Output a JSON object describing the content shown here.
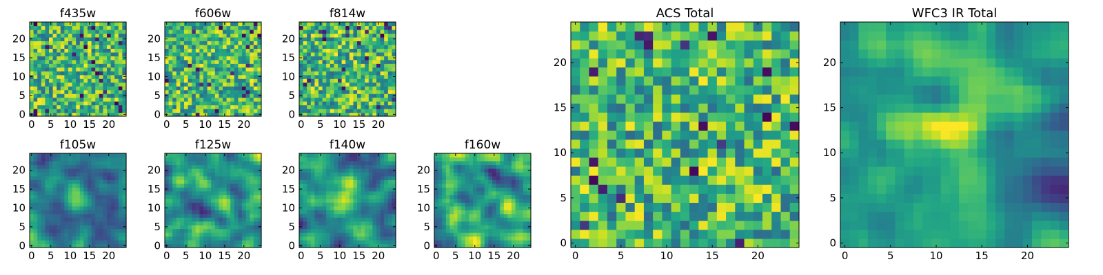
{
  "chart_data": [
    {
      "type": "heatmap",
      "title": "f435w",
      "grid_size": [
        25,
        25
      ],
      "xticks": [
        0,
        5,
        10,
        15,
        20
      ],
      "yticks": [
        0,
        5,
        10,
        15,
        20
      ],
      "xlim": [
        -0.5,
        24.5
      ],
      "ylim": [
        -0.5,
        24.5
      ],
      "origin": "lower",
      "colormap": "viridis",
      "texture": "speckled pixel noise",
      "seed": 11
    },
    {
      "type": "heatmap",
      "title": "f606w",
      "grid_size": [
        25,
        25
      ],
      "xticks": [
        0,
        5,
        10,
        15,
        20
      ],
      "yticks": [
        0,
        5,
        10,
        15,
        20
      ],
      "xlim": [
        -0.5,
        24.5
      ],
      "ylim": [
        -0.5,
        24.5
      ],
      "origin": "lower",
      "colormap": "viridis",
      "texture": "speckled pixel noise",
      "seed": 22
    },
    {
      "type": "heatmap",
      "title": "f814w",
      "grid_size": [
        25,
        25
      ],
      "xticks": [
        0,
        5,
        10,
        15,
        20
      ],
      "yticks": [
        0,
        5,
        10,
        15,
        20
      ],
      "xlim": [
        -0.5,
        24.5
      ],
      "ylim": [
        -0.5,
        24.5
      ],
      "origin": "lower",
      "colormap": "viridis",
      "texture": "speckled pixel noise",
      "seed": 33
    },
    {
      "type": "heatmap",
      "title": "f105w",
      "grid_size": [
        25,
        25
      ],
      "xticks": [
        0,
        5,
        10,
        15,
        20
      ],
      "yticks": [
        0,
        5,
        10,
        15,
        20
      ],
      "xlim": [
        -0.5,
        24.5
      ],
      "ylim": [
        -0.5,
        24.5
      ],
      "origin": "lower",
      "colormap": "viridis",
      "texture": "smooth blotchy noise with bright central source",
      "seed": 44
    },
    {
      "type": "heatmap",
      "title": "f125w",
      "grid_size": [
        25,
        25
      ],
      "xticks": [
        0,
        5,
        10,
        15,
        20
      ],
      "yticks": [
        0,
        5,
        10,
        15,
        20
      ],
      "xlim": [
        -0.5,
        24.5
      ],
      "ylim": [
        -0.5,
        24.5
      ],
      "origin": "lower",
      "colormap": "viridis",
      "texture": "smooth blotchy noise",
      "seed": 55
    },
    {
      "type": "heatmap",
      "title": "f140w",
      "grid_size": [
        25,
        25
      ],
      "xticks": [
        0,
        5,
        10,
        15,
        20
      ],
      "yticks": [
        0,
        5,
        10,
        15,
        20
      ],
      "xlim": [
        -0.5,
        24.5
      ],
      "ylim": [
        -0.5,
        24.5
      ],
      "origin": "lower",
      "colormap": "viridis",
      "texture": "smooth blotchy noise with bright central source",
      "seed": 66
    },
    {
      "type": "heatmap",
      "title": "f160w",
      "grid_size": [
        25,
        25
      ],
      "xticks": [
        0,
        5,
        10,
        15,
        20
      ],
      "yticks": [
        0,
        5,
        10,
        15,
        20
      ],
      "xlim": [
        -0.5,
        24.5
      ],
      "ylim": [
        -0.5,
        24.5
      ],
      "origin": "lower",
      "colormap": "viridis",
      "texture": "smooth blotchy noise",
      "seed": 77
    },
    {
      "type": "heatmap",
      "title": "ACS Total",
      "grid_size": [
        25,
        25
      ],
      "xticks": [
        0,
        5,
        10,
        15,
        20
      ],
      "yticks": [
        0,
        5,
        10,
        15,
        20
      ],
      "xlim": [
        -0.5,
        24.5
      ],
      "ylim": [
        -0.5,
        24.5
      ],
      "origin": "lower",
      "colormap": "viridis",
      "texture": "pixel noise",
      "seed": 88
    },
    {
      "type": "heatmap",
      "title": "WFC3 IR Total",
      "grid_size": [
        25,
        25
      ],
      "xticks": [
        0,
        5,
        10,
        15,
        20
      ],
      "yticks": [
        0,
        5,
        10,
        15,
        20
      ],
      "xlim": [
        -0.5,
        24.5
      ],
      "ylim": [
        -0.5,
        24.5
      ],
      "origin": "lower",
      "colormap": "viridis",
      "texture": "smooth noise with bright elongated central source",
      "seed": 99
    }
  ]
}
